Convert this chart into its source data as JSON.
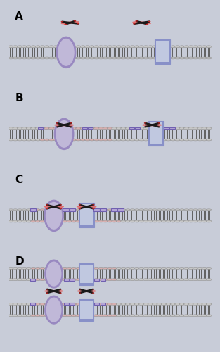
{
  "bg_color": "#ffffff",
  "outer_bg": "#c8ccd8",
  "panel_bg": "#ffffff",
  "panel_labels": [
    "A",
    "B",
    "C",
    "D"
  ],
  "membrane_ball_color": "#c8c8c8",
  "membrane_ball_edge": "#909090",
  "membrane_tail_color": "#606060",
  "ellipse_color_light": "#c0b8d8",
  "ellipse_color_dark": "#9888c0",
  "rect_color_light": "#c0c8e0",
  "rect_color_dark": "#8890c8",
  "polyphenol_body": "#e07070",
  "polyphenol_arm": "#1a1a1a",
  "polyphenol_tip": "#cc2222",
  "modified_lipid": "#d8b0b0",
  "cluster_border": "#7060b0",
  "cluster_fill": "#b8a8d8",
  "cluster_dot": "#c0a8d8"
}
